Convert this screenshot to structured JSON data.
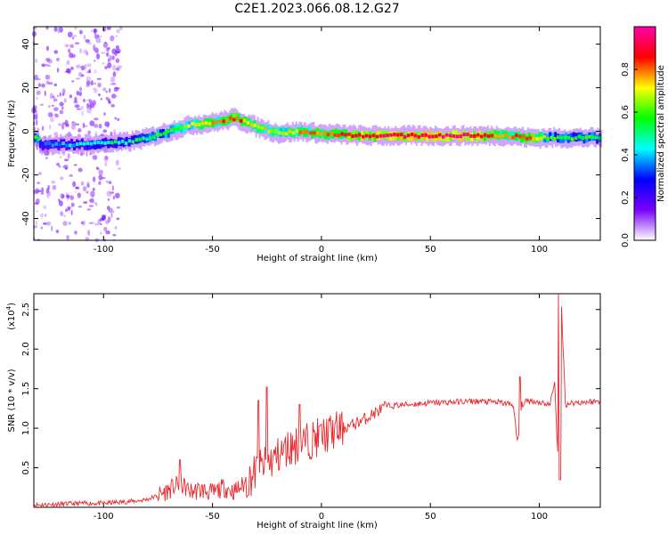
{
  "title": "C2E1.2023.066.08.12.G27",
  "chart_data": [
    {
      "type": "heatmap",
      "xlabel": "Height of straight line (km)",
      "ylabel": "Frequency (Hz)",
      "xlim": [
        -132,
        128
      ],
      "ylim": [
        -50,
        48
      ],
      "xticks": [
        -100,
        -50,
        0,
        50,
        100
      ],
      "yticks": [
        -40,
        -20,
        0,
        20,
        40
      ],
      "colorbar": {
        "label": "Normalized spectral amplitude",
        "range": [
          0.0,
          1.0
        ],
        "ticks": [
          0.0,
          0.2,
          0.4,
          0.6,
          0.8
        ],
        "colormap": [
          "#ffffff",
          "#7a00ff",
          "#0000ff",
          "#00ffff",
          "#00ff00",
          "#ffff00",
          "#ff0000",
          "#ff00aa"
        ]
      },
      "ridge": [
        {
          "x": -130,
          "y": -6,
          "a": 0.35
        },
        {
          "x": -110,
          "y": -6,
          "a": 0.45
        },
        {
          "x": -90,
          "y": -5,
          "a": 0.5
        },
        {
          "x": -80,
          "y": -3,
          "a": 0.55
        },
        {
          "x": -70,
          "y": 0,
          "a": 0.6
        },
        {
          "x": -60,
          "y": 3,
          "a": 0.7
        },
        {
          "x": -50,
          "y": 4,
          "a": 0.75
        },
        {
          "x": -40,
          "y": 6,
          "a": 0.85
        },
        {
          "x": -30,
          "y": 2,
          "a": 0.7
        },
        {
          "x": -20,
          "y": -1,
          "a": 0.7
        },
        {
          "x": -10,
          "y": 0,
          "a": 0.75
        },
        {
          "x": 0,
          "y": -1,
          "a": 0.8
        },
        {
          "x": 20,
          "y": -2,
          "a": 0.9
        },
        {
          "x": 50,
          "y": -2,
          "a": 0.95
        },
        {
          "x": 70,
          "y": -2,
          "a": 0.92
        },
        {
          "x": 85,
          "y": -2,
          "a": 0.75
        },
        {
          "x": 95,
          "y": -3,
          "a": 0.85
        },
        {
          "x": 105,
          "y": -3,
          "a": 0.6
        },
        {
          "x": 128,
          "y": -3,
          "a": 0.55
        }
      ]
    },
    {
      "type": "line",
      "xlabel": "Height of straight line (km)",
      "ylabel": "SNR (10 * v/v)",
      "y_multiplier_label": "(x10",
      "y_multiplier_exp": "4",
      "xlim": [
        -132,
        128
      ],
      "ylim": [
        0,
        2.7
      ],
      "xticks": [
        -100,
        -50,
        0,
        50,
        100
      ],
      "yticks": [
        0.5,
        1.0,
        1.5,
        2.0,
        2.5
      ],
      "series": [
        {
          "color": "#e8292d",
          "x": [
            -132,
            -120,
            -110,
            -100,
            -90,
            -85,
            -80,
            -75,
            -70,
            -65,
            -60,
            -55,
            -50,
            -45,
            -40,
            -35,
            -30,
            -25,
            -20,
            -15,
            -10,
            -5,
            0,
            5,
            10,
            15,
            20,
            25,
            30,
            40,
            50,
            60,
            70,
            80,
            88,
            90,
            92,
            95,
            100,
            105,
            107,
            109,
            110,
            112,
            115,
            120,
            128
          ],
          "y": [
            0.03,
            0.04,
            0.05,
            0.05,
            0.07,
            0.08,
            0.1,
            0.15,
            0.22,
            0.3,
            0.2,
            0.22,
            0.18,
            0.25,
            0.2,
            0.3,
            0.45,
            0.55,
            0.65,
            0.75,
            0.8,
            0.85,
            0.9,
            0.95,
            1.0,
            1.05,
            1.12,
            1.2,
            1.28,
            1.3,
            1.32,
            1.33,
            1.34,
            1.33,
            1.3,
            0.8,
            1.3,
            1.35,
            1.33,
            1.3,
            1.6,
            0.35,
            2.65,
            1.3,
            1.32,
            1.33,
            1.34
          ],
          "spikes": [
            {
              "x": -65,
              "y": 0.6
            },
            {
              "x": -29,
              "y": 1.35
            },
            {
              "x": -25,
              "y": 1.52
            },
            {
              "x": -10,
              "y": 1.3
            },
            {
              "x": 91,
              "y": 1.65
            },
            {
              "x": 109,
              "y": 2.7
            },
            {
              "x": 109.5,
              "y": 0.35
            }
          ]
        }
      ]
    }
  ]
}
